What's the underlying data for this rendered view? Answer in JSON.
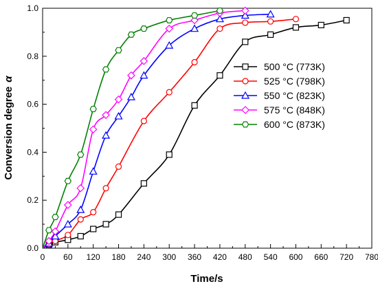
{
  "chart_data": {
    "type": "line",
    "xlabel": "Time/s",
    "ylabel": "Conversion degree",
    "ylabel_symbol": "α",
    "xlim": [
      0,
      780
    ],
    "ylim": [
      0,
      1.0
    ],
    "xticks": [
      "0",
      "60",
      "120",
      "180",
      "240",
      "300",
      "360",
      "420",
      "480",
      "540",
      "600",
      "660",
      "720",
      "780"
    ],
    "yticks": [
      "0.0",
      "0.2",
      "0.4",
      "0.6",
      "0.8",
      "1.0"
    ],
    "legend_position": "center-right",
    "series": [
      {
        "name": "500 °C (773K)",
        "color": "#000000",
        "marker": "square",
        "x": [
          0,
          15,
          30,
          60,
          90,
          120,
          150,
          180,
          240,
          300,
          360,
          420,
          480,
          540,
          600,
          660,
          720
        ],
        "y": [
          0.0,
          0.015,
          0.025,
          0.035,
          0.05,
          0.08,
          0.1,
          0.14,
          0.27,
          0.39,
          0.595,
          0.72,
          0.86,
          0.89,
          0.92,
          0.93,
          0.95
        ]
      },
      {
        "name": "525 °C (798K)",
        "color": "#ff0000",
        "marker": "circle",
        "x": [
          0,
          15,
          30,
          60,
          90,
          120,
          150,
          180,
          240,
          300,
          360,
          420,
          480,
          540,
          600
        ],
        "y": [
          0.0,
          0.015,
          0.03,
          0.055,
          0.12,
          0.15,
          0.25,
          0.34,
          0.53,
          0.65,
          0.775,
          0.915,
          0.94,
          0.945,
          0.955
        ]
      },
      {
        "name": "550 °C (823K)",
        "color": "#0000ff",
        "marker": "triangle",
        "x": [
          0,
          15,
          30,
          60,
          90,
          120,
          150,
          180,
          210,
          240,
          300,
          360,
          420,
          480,
          540
        ],
        "y": [
          0.0,
          0.02,
          0.05,
          0.1,
          0.16,
          0.32,
          0.47,
          0.55,
          0.63,
          0.72,
          0.845,
          0.915,
          0.955,
          0.97,
          0.975
        ]
      },
      {
        "name": "575 °C (848K)",
        "color": "#ff00ff",
        "marker": "diamond",
        "x": [
          0,
          15,
          30,
          60,
          90,
          120,
          150,
          180,
          210,
          240,
          300,
          360,
          420,
          480
        ],
        "y": [
          0.0,
          0.03,
          0.07,
          0.18,
          0.25,
          0.495,
          0.555,
          0.62,
          0.72,
          0.78,
          0.915,
          0.95,
          0.98,
          0.99
        ]
      },
      {
        "name": "600 °C (873K)",
        "color": "#008000",
        "marker": "hexagon",
        "x": [
          0,
          15,
          30,
          60,
          90,
          120,
          150,
          180,
          210,
          240,
          300,
          360,
          420
        ],
        "y": [
          0.0,
          0.075,
          0.13,
          0.28,
          0.39,
          0.58,
          0.745,
          0.825,
          0.89,
          0.915,
          0.95,
          0.97,
          0.99
        ]
      }
    ]
  }
}
